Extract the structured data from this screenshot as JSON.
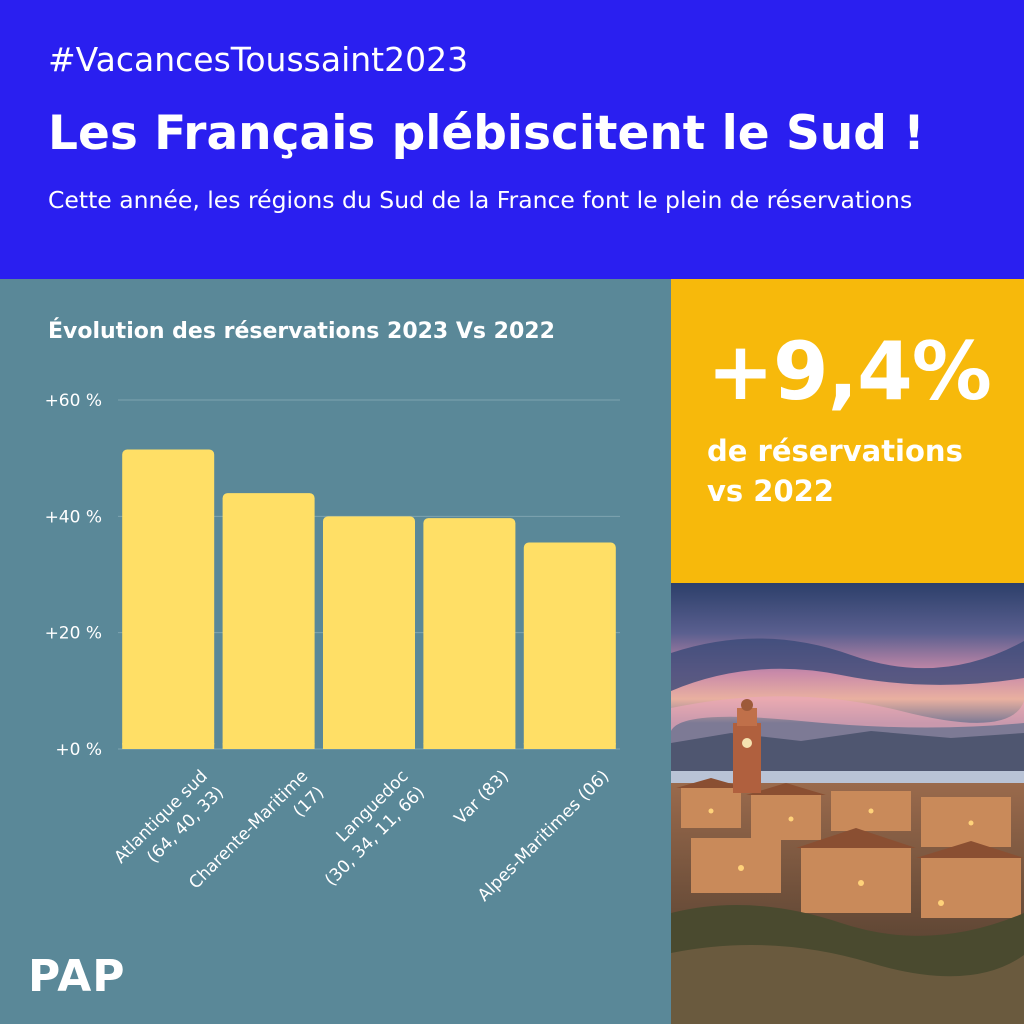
{
  "header": {
    "hashtag": "#VacancesToussaint2023",
    "title": "Les Français plébiscitent le Sud !",
    "subtitle": "Cette année, les régions du Sud de la France font le plein de réservations"
  },
  "highlight": {
    "value": "+9,4%",
    "label_line1": "de réservations",
    "label_line2": "vs 2022"
  },
  "brand": {
    "logo_text": "PAP"
  },
  "colors": {
    "header_bg": "#2a1ff0",
    "panel_bg": "#5a8898",
    "bar": "#ffdf66",
    "stat_bg": "#f7b90b"
  },
  "chart_data": {
    "type": "bar",
    "title": "Évolution des réservations 2023 Vs 2022",
    "categories": [
      [
        "Atlantique sud",
        "(64, 40, 33)"
      ],
      [
        "Charente-Maritime",
        "(17)"
      ],
      [
        "Languedoc",
        "(30, 34, 11, 66)"
      ],
      [
        "Var (83)"
      ],
      [
        "Alpes-Maritimes (06)"
      ]
    ],
    "values": [
      51.5,
      44,
      40,
      39.7,
      35.5
    ],
    "yticks": [
      "+0 %",
      "+20 %",
      "+40 %",
      "+60 %"
    ],
    "ytick_values": [
      0,
      20,
      40,
      60
    ],
    "ylim": [
      0,
      60
    ],
    "grid": true
  }
}
